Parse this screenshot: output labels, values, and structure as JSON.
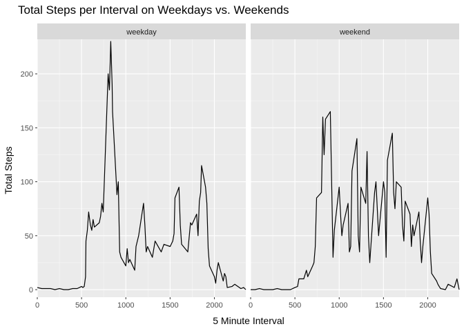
{
  "chart_data": {
    "type": "line",
    "title": "Total Steps per Interval on Weekdays vs. Weekends",
    "xlabel": "5 Minute Interval",
    "ylabel": "Total Steps",
    "xlim": [
      0,
      2355
    ],
    "ylim": [
      -7,
      232
    ],
    "xticks": [
      0,
      500,
      1000,
      1500,
      2000
    ],
    "yticks": [
      0,
      50,
      100,
      150,
      200
    ],
    "grid": true,
    "legend": "none",
    "line_color": "#000000",
    "panel_background": "#ebebeb",
    "strip_background": "#d9d9d9",
    "panels": [
      {
        "name": "weekday",
        "x": [
          0,
          50,
          100,
          150,
          200,
          250,
          300,
          350,
          400,
          450,
          500,
          515,
          530,
          545,
          550,
          565,
          580,
          600,
          615,
          630,
          645,
          700,
          715,
          730,
          745,
          800,
          815,
          830,
          845,
          850,
          900,
          915,
          930,
          945,
          1000,
          1015,
          1030,
          1045,
          1100,
          1115,
          1130,
          1145,
          1200,
          1215,
          1230,
          1245,
          1300,
          1330,
          1400,
          1430,
          1500,
          1530,
          1545,
          1555,
          1600,
          1615,
          1630,
          1700,
          1730,
          1745,
          1800,
          1815,
          1830,
          1845,
          1855,
          1900,
          1915,
          1930,
          1945,
          2000,
          2015,
          2030,
          2045,
          2100,
          2115,
          2130,
          2145,
          2200,
          2230,
          2300,
          2330,
          2355
        ],
        "y": [
          2,
          1,
          1,
          1,
          0,
          1,
          0,
          0,
          1,
          1,
          3,
          2,
          3,
          12,
          45,
          55,
          72,
          60,
          55,
          65,
          58,
          62,
          68,
          80,
          72,
          200,
          185,
          230,
          190,
          165,
          88,
          100,
          35,
          30,
          22,
          38,
          25,
          28,
          18,
          40,
          45,
          50,
          80,
          60,
          35,
          40,
          30,
          45,
          35,
          42,
          40,
          45,
          52,
          85,
          95,
          60,
          42,
          35,
          62,
          60,
          70,
          50,
          82,
          90,
          115,
          95,
          80,
          38,
          22,
          12,
          6,
          18,
          25,
          8,
          15,
          12,
          2,
          3,
          5,
          1,
          2,
          0
        ]
      },
      {
        "name": "weekend",
        "x": [
          0,
          50,
          100,
          150,
          200,
          250,
          300,
          350,
          400,
          450,
          500,
          530,
          545,
          600,
          630,
          645,
          700,
          715,
          730,
          745,
          800,
          815,
          830,
          845,
          900,
          915,
          930,
          945,
          1000,
          1015,
          1030,
          1045,
          1100,
          1115,
          1130,
          1145,
          1200,
          1215,
          1230,
          1245,
          1300,
          1315,
          1330,
          1345,
          1400,
          1415,
          1430,
          1445,
          1500,
          1515,
          1530,
          1545,
          1600,
          1615,
          1630,
          1645,
          1700,
          1715,
          1730,
          1745,
          1800,
          1815,
          1830,
          1845,
          1900,
          1915,
          1930,
          1945,
          2000,
          2015,
          2030,
          2045,
          2100,
          2115,
          2130,
          2145,
          2200,
          2230,
          2300,
          2330,
          2355
        ],
        "y": [
          0,
          0,
          1,
          0,
          0,
          0,
          1,
          0,
          0,
          0,
          2,
          3,
          10,
          10,
          18,
          12,
          22,
          25,
          40,
          85,
          90,
          160,
          125,
          158,
          165,
          100,
          30,
          55,
          95,
          70,
          50,
          60,
          80,
          35,
          40,
          110,
          140,
          50,
          35,
          95,
          80,
          128,
          50,
          25,
          90,
          100,
          75,
          50,
          100,
          90,
          30,
          120,
          145,
          90,
          75,
          100,
          95,
          60,
          45,
          82,
          70,
          40,
          60,
          50,
          72,
          45,
          25,
          40,
          85,
          70,
          35,
          15,
          8,
          5,
          3,
          1,
          0,
          5,
          2,
          10,
          0
        ]
      }
    ]
  }
}
